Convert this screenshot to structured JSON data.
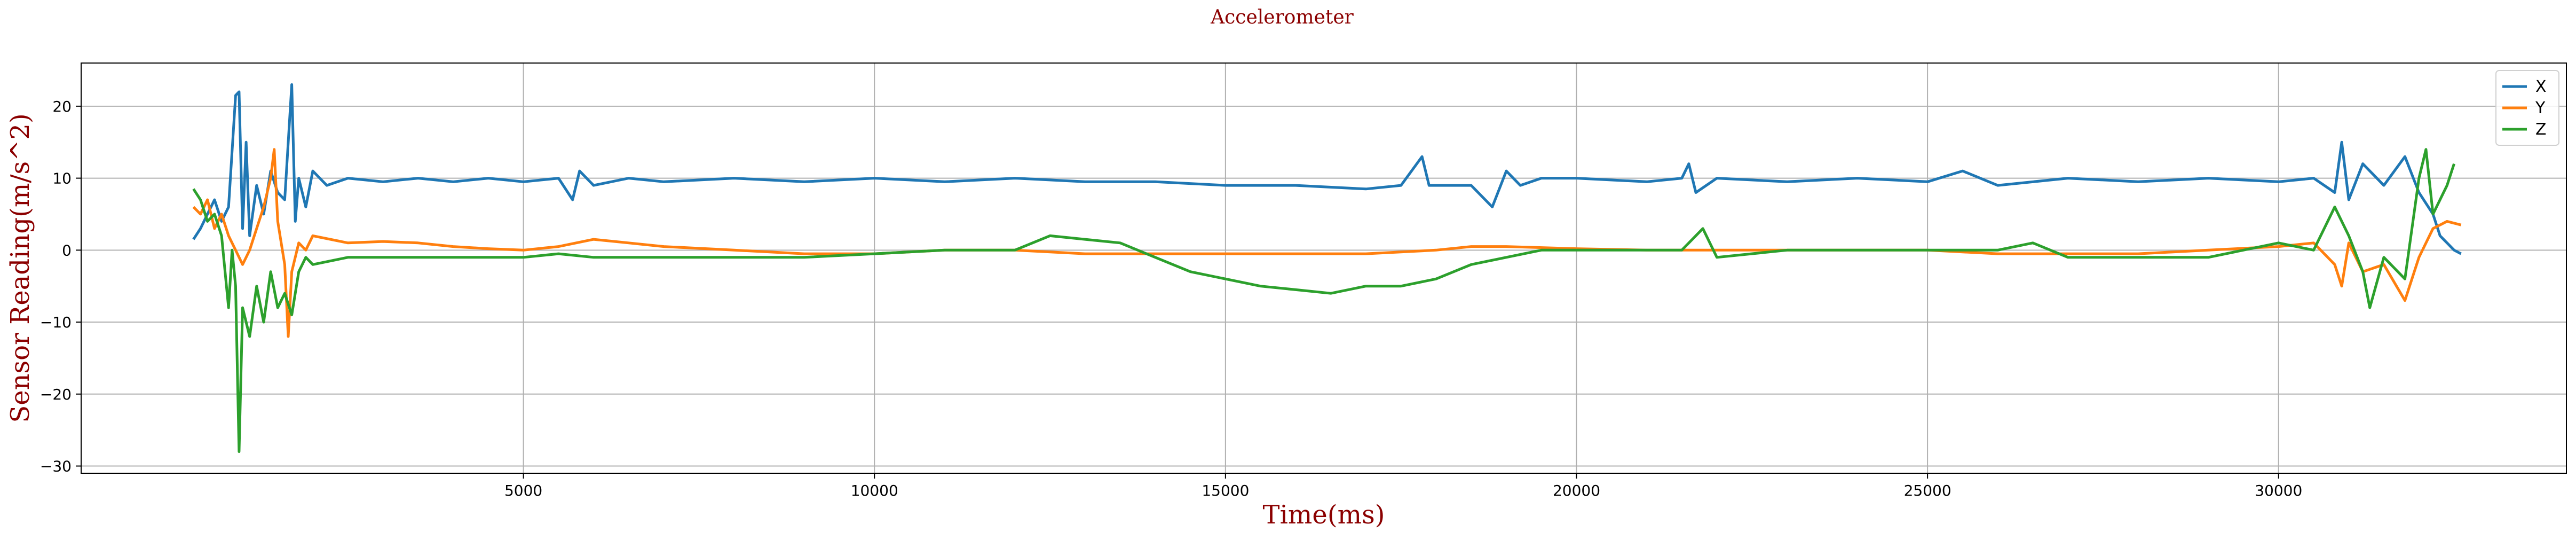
{
  "chart_data": {
    "type": "line",
    "title": "Accelerometer",
    "xlabel": "Time(ms)",
    "ylabel": "Sensor Reading(m/s^2)",
    "xlim": [
      -1300,
      34100
    ],
    "ylim": [
      -31,
      26
    ],
    "xticks": [
      5000,
      10000,
      15000,
      20000,
      25000,
      30000
    ],
    "yticks": [
      20,
      10,
      0,
      -10,
      -20,
      -30
    ],
    "grid": true,
    "legend_position": "top-right",
    "label_color": "#8b0000",
    "series": [
      {
        "name": "X",
        "color": "#1f77b4",
        "points": [
          [
            300,
            1.5
          ],
          [
            400,
            3
          ],
          [
            500,
            5
          ],
          [
            600,
            7
          ],
          [
            700,
            4
          ],
          [
            800,
            6
          ],
          [
            900,
            21.5
          ],
          [
            950,
            22
          ],
          [
            1000,
            3
          ],
          [
            1050,
            15
          ],
          [
            1100,
            2
          ],
          [
            1200,
            9
          ],
          [
            1300,
            5
          ],
          [
            1400,
            11
          ],
          [
            1500,
            8
          ],
          [
            1600,
            7
          ],
          [
            1700,
            23
          ],
          [
            1750,
            4
          ],
          [
            1800,
            10
          ],
          [
            1900,
            6
          ],
          [
            2000,
            11
          ],
          [
            2200,
            9
          ],
          [
            2500,
            10
          ],
          [
            3000,
            9.5
          ],
          [
            3500,
            10
          ],
          [
            4000,
            9.5
          ],
          [
            4500,
            10
          ],
          [
            5000,
            9.5
          ],
          [
            5500,
            10
          ],
          [
            5700,
            7
          ],
          [
            5800,
            11
          ],
          [
            6000,
            9
          ],
          [
            6500,
            10
          ],
          [
            7000,
            9.5
          ],
          [
            8000,
            10
          ],
          [
            9000,
            9.5
          ],
          [
            10000,
            10
          ],
          [
            11000,
            9.5
          ],
          [
            12000,
            10
          ],
          [
            13000,
            9.5
          ],
          [
            14000,
            9.5
          ],
          [
            15000,
            9
          ],
          [
            16000,
            9
          ],
          [
            17000,
            8.5
          ],
          [
            17500,
            9
          ],
          [
            17800,
            13
          ],
          [
            17900,
            9
          ],
          [
            18500,
            9
          ],
          [
            18800,
            6
          ],
          [
            19000,
            11
          ],
          [
            19200,
            9
          ],
          [
            19500,
            10
          ],
          [
            20000,
            10
          ],
          [
            21000,
            9.5
          ],
          [
            21500,
            10
          ],
          [
            21600,
            12
          ],
          [
            21700,
            8
          ],
          [
            22000,
            10
          ],
          [
            23000,
            9.5
          ],
          [
            24000,
            10
          ],
          [
            25000,
            9.5
          ],
          [
            25500,
            11
          ],
          [
            26000,
            9
          ],
          [
            27000,
            10
          ],
          [
            28000,
            9.5
          ],
          [
            29000,
            10
          ],
          [
            30000,
            9.5
          ],
          [
            30500,
            10
          ],
          [
            30800,
            8
          ],
          [
            30900,
            15
          ],
          [
            31000,
            7
          ],
          [
            31200,
            12
          ],
          [
            31500,
            9
          ],
          [
            31800,
            13
          ],
          [
            32000,
            8
          ],
          [
            32200,
            5
          ],
          [
            32300,
            2
          ],
          [
            32400,
            1
          ],
          [
            32500,
            0
          ],
          [
            32600,
            -0.5
          ]
        ]
      },
      {
        "name": "Y",
        "color": "#ff7f0e",
        "points": [
          [
            300,
            6
          ],
          [
            400,
            5
          ],
          [
            500,
            7
          ],
          [
            600,
            3
          ],
          [
            700,
            5
          ],
          [
            800,
            2
          ],
          [
            900,
            0
          ],
          [
            1000,
            -2
          ],
          [
            1100,
            0
          ],
          [
            1200,
            3
          ],
          [
            1300,
            6
          ],
          [
            1400,
            10
          ],
          [
            1450,
            14
          ],
          [
            1500,
            4
          ],
          [
            1600,
            -2
          ],
          [
            1650,
            -12
          ],
          [
            1700,
            -3
          ],
          [
            1800,
            1
          ],
          [
            1900,
            0
          ],
          [
            2000,
            2
          ],
          [
            2500,
            1
          ],
          [
            3000,
            1.2
          ],
          [
            3500,
            1
          ],
          [
            4000,
            0.5
          ],
          [
            4500,
            0.2
          ],
          [
            5000,
            0
          ],
          [
            5500,
            0.5
          ],
          [
            6000,
            1.5
          ],
          [
            6500,
            1
          ],
          [
            7000,
            0.5
          ],
          [
            8000,
            0
          ],
          [
            9000,
            -0.5
          ],
          [
            10000,
            -0.5
          ],
          [
            11000,
            0
          ],
          [
            12000,
            0
          ],
          [
            13000,
            -0.5
          ],
          [
            14000,
            -0.5
          ],
          [
            15000,
            -0.5
          ],
          [
            16000,
            -0.5
          ],
          [
            17000,
            -0.5
          ],
          [
            18000,
            0
          ],
          [
            18500,
            0.5
          ],
          [
            19000,
            0.5
          ],
          [
            20000,
            0.2
          ],
          [
            21000,
            0
          ],
          [
            22000,
            0
          ],
          [
            23000,
            0
          ],
          [
            24000,
            0
          ],
          [
            25000,
            0
          ],
          [
            26000,
            -0.5
          ],
          [
            27000,
            -0.5
          ],
          [
            28000,
            -0.5
          ],
          [
            29000,
            0
          ],
          [
            30000,
            0.5
          ],
          [
            30500,
            1
          ],
          [
            30800,
            -2
          ],
          [
            30900,
            -5
          ],
          [
            31000,
            1
          ],
          [
            31200,
            -3
          ],
          [
            31500,
            -2
          ],
          [
            31800,
            -7
          ],
          [
            32000,
            -1
          ],
          [
            32200,
            3
          ],
          [
            32400,
            4
          ],
          [
            32600,
            3.5
          ]
        ]
      },
      {
        "name": "Z",
        "color": "#2ca02c",
        "points": [
          [
            300,
            8.5
          ],
          [
            400,
            7
          ],
          [
            500,
            4
          ],
          [
            600,
            5
          ],
          [
            700,
            2
          ],
          [
            800,
            -8
          ],
          [
            850,
            0
          ],
          [
            900,
            -5
          ],
          [
            950,
            -28
          ],
          [
            1000,
            -8
          ],
          [
            1100,
            -12
          ],
          [
            1200,
            -5
          ],
          [
            1300,
            -10
          ],
          [
            1400,
            -3
          ],
          [
            1500,
            -8
          ],
          [
            1600,
            -6
          ],
          [
            1700,
            -9
          ],
          [
            1800,
            -3
          ],
          [
            1900,
            -1
          ],
          [
            2000,
            -2
          ],
          [
            2500,
            -1
          ],
          [
            3000,
            -1
          ],
          [
            3500,
            -1
          ],
          [
            4000,
            -1
          ],
          [
            4500,
            -1
          ],
          [
            5000,
            -1
          ],
          [
            5500,
            -0.5
          ],
          [
            6000,
            -1
          ],
          [
            7000,
            -1
          ],
          [
            8000,
            -1
          ],
          [
            9000,
            -1
          ],
          [
            10000,
            -0.5
          ],
          [
            11000,
            0
          ],
          [
            12000,
            0
          ],
          [
            12500,
            2
          ],
          [
            13000,
            1.5
          ],
          [
            13500,
            1
          ],
          [
            14000,
            -1
          ],
          [
            14500,
            -3
          ],
          [
            15000,
            -4
          ],
          [
            15500,
            -5
          ],
          [
            16000,
            -5.5
          ],
          [
            16500,
            -6
          ],
          [
            17000,
            -5
          ],
          [
            17500,
            -5
          ],
          [
            18000,
            -4
          ],
          [
            18500,
            -2
          ],
          [
            19000,
            -1
          ],
          [
            19500,
            0
          ],
          [
            20000,
            0
          ],
          [
            20500,
            0
          ],
          [
            21000,
            0
          ],
          [
            21500,
            0
          ],
          [
            21800,
            3
          ],
          [
            22000,
            -1
          ],
          [
            23000,
            0
          ],
          [
            24000,
            0
          ],
          [
            25000,
            0
          ],
          [
            26000,
            0
          ],
          [
            26500,
            1
          ],
          [
            27000,
            -1
          ],
          [
            28000,
            -1
          ],
          [
            29000,
            -1
          ],
          [
            30000,
            1
          ],
          [
            30500,
            0
          ],
          [
            30800,
            6
          ],
          [
            31000,
            2
          ],
          [
            31200,
            -3
          ],
          [
            31300,
            -8
          ],
          [
            31500,
            -1
          ],
          [
            31800,
            -4
          ],
          [
            32000,
            10
          ],
          [
            32100,
            14
          ],
          [
            32200,
            5
          ],
          [
            32400,
            9
          ],
          [
            32500,
            12
          ]
        ]
      }
    ]
  }
}
